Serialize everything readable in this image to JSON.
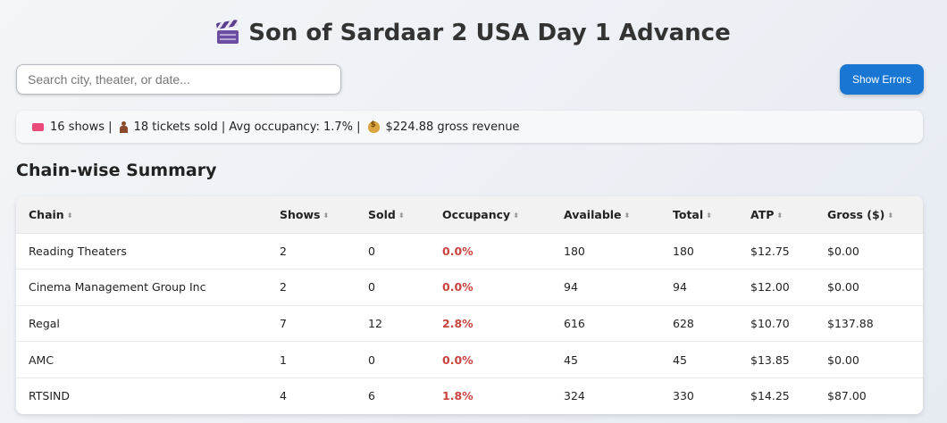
{
  "page": {
    "title": "Son of Sardaar 2 USA Day 1 Advance",
    "title_icon": "clapper-board-icon"
  },
  "search": {
    "placeholder": "Search city, theater, or date...",
    "value": ""
  },
  "toolbar": {
    "show_errors_label": "Show Errors",
    "accent": "#1976d2"
  },
  "summary": {
    "shows": "16 shows |",
    "tickets": "18 tickets sold | Avg occupancy: 1.7% |",
    "gross": "$224.88 gross revenue"
  },
  "section": {
    "heading": "Chain-wise Summary"
  },
  "table": {
    "sort_glyph": "⬍",
    "headers": [
      "Chain",
      "Shows",
      "Sold",
      "Occupancy",
      "Available",
      "Total",
      "ATP",
      "Gross ($)"
    ],
    "rows": [
      [
        "Reading Theaters",
        "2",
        "0",
        "0.0%",
        "180",
        "180",
        "$12.75",
        "$0.00"
      ],
      [
        "Cinema Management Group Inc",
        "2",
        "0",
        "0.0%",
        "94",
        "94",
        "$12.00",
        "$0.00"
      ],
      [
        "Regal",
        "7",
        "12",
        "2.8%",
        "616",
        "628",
        "$10.70",
        "$137.88"
      ],
      [
        "AMC",
        "1",
        "0",
        "0.0%",
        "45",
        "45",
        "$13.85",
        "$0.00"
      ],
      [
        "RTSIND",
        "4",
        "6",
        "1.8%",
        "324",
        "330",
        "$14.25",
        "$87.00"
      ]
    ],
    "occupancy_color": "#c9443f"
  }
}
